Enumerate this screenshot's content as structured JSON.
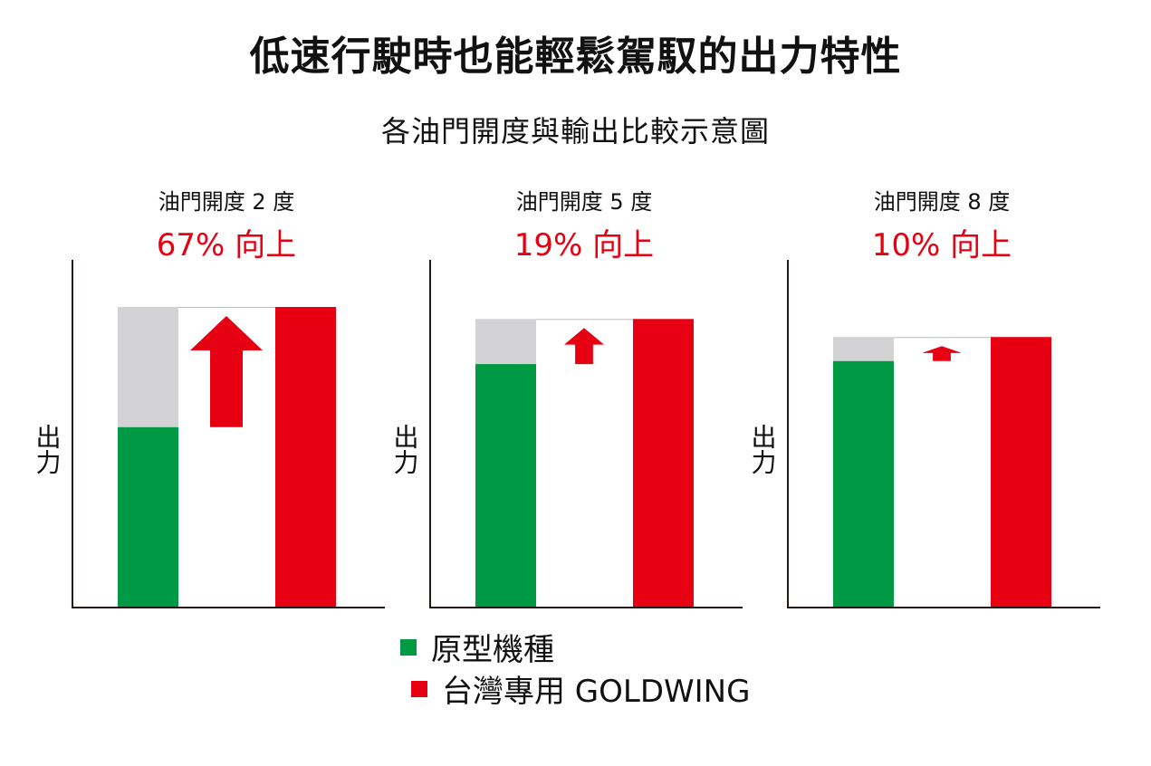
{
  "title": "低速行駛時也能輕鬆駕馭的出力特性",
  "subtitle": "各油門開度與輸出比較示意圖",
  "colors": {
    "original": "#009a44",
    "goldwing": "#e60012",
    "gap": "#d3d3d5",
    "axis": "#231815",
    "text": "#111111"
  },
  "chart_data": [
    {
      "type": "bar",
      "title": "油門開度 2 度",
      "annotation": "67% 向上",
      "ylabel": "出力",
      "series": [
        {
          "name": "原型機種",
          "values": [
            0.6
          ]
        },
        {
          "name": "台灣專用 GOLDWING",
          "values": [
            1.0
          ]
        }
      ]
    },
    {
      "type": "bar",
      "title": "油門開度 5 度",
      "annotation": "19% 向上",
      "ylabel": "出力",
      "series": [
        {
          "name": "原型機種",
          "values": [
            0.81
          ]
        },
        {
          "name": "台灣專用 GOLDWING",
          "values": [
            0.96
          ]
        }
      ]
    },
    {
      "type": "bar",
      "title": "油門開度 8 度",
      "annotation": "10% 向上",
      "ylabel": "出力",
      "series": [
        {
          "name": "原型機種",
          "values": [
            0.82
          ]
        },
        {
          "name": "台灣專用 GOLDWING",
          "values": [
            0.9
          ]
        }
      ]
    }
  ],
  "legend": [
    {
      "label": "原型機種",
      "color": "#009a44"
    },
    {
      "label": "台灣專用 GOLDWING",
      "color": "#e60012"
    }
  ]
}
